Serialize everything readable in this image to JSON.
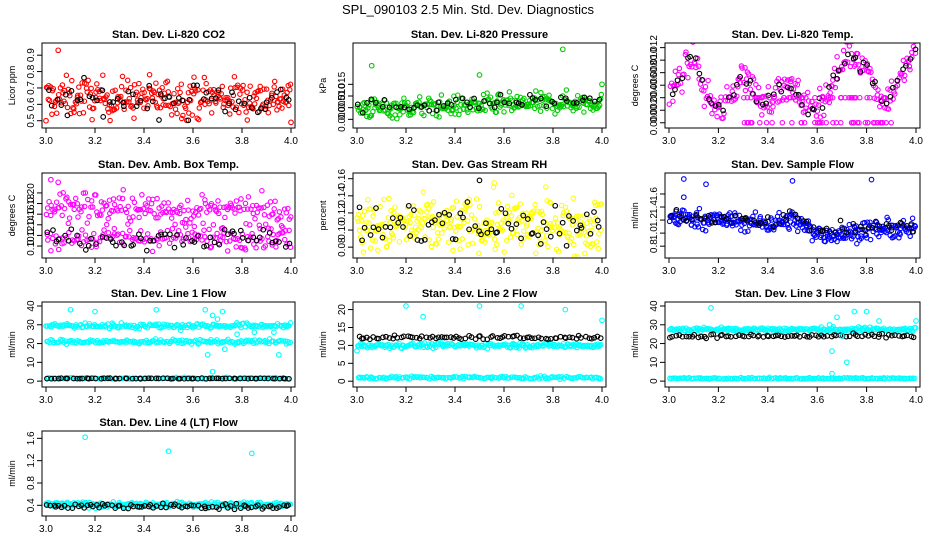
{
  "figure": {
    "title": "SPL_090103  2.5 Min. Std. Dev. Diagnostics",
    "colors": {
      "red": "#ff0000",
      "green": "#00cc00",
      "magenta": "#ff00ff",
      "yellow": "#ffff00",
      "blue": "#0000ff",
      "cyan": "#00ffff",
      "black": "#000000"
    }
  },
  "chart_data": [
    {
      "type": "scatter",
      "title": "Stan. Dev. Li-820 CO2",
      "ylabel": "Licor ppm",
      "xlim": [
        3.0,
        4.0
      ],
      "ylim": [
        0.48,
        0.95
      ],
      "xticks": [
        3.0,
        3.2,
        3.4,
        3.6,
        3.8,
        4.0
      ],
      "xtick_labels": [
        "3.0",
        "3.2",
        "3.4",
        "3.6",
        "3.8",
        "4.0"
      ],
      "yticks": [
        0.5,
        0.6,
        0.7,
        0.8,
        0.9
      ],
      "ytick_labels": [
        "0.5",
        "0.6",
        "0.7",
        "0.8",
        "0.9"
      ],
      "series": [
        {
          "name": "dense",
          "color": "red",
          "size": 280,
          "mean": 0.64,
          "spread": 0.06,
          "segments": []
        },
        {
          "name": "sparse",
          "color": "black",
          "size": 60,
          "mean": 0.63,
          "spread": 0.05,
          "segments": []
        }
      ],
      "outliers": [
        [
          3.05,
          0.93,
          "red"
        ],
        [
          3.0,
          0.5,
          "red"
        ],
        [
          4.0,
          0.49,
          "red"
        ]
      ]
    },
    {
      "type": "scatter",
      "title": "Stan. Dev. Li-820 Pressure",
      "ylabel": "kPa",
      "xlim": [
        3.0,
        4.0
      ],
      "ylim": [
        -0.002,
        0.031
      ],
      "xticks": [
        3.0,
        3.2,
        3.4,
        3.6,
        3.8,
        4.0
      ],
      "xtick_labels": [
        "3.0",
        "3.2",
        "3.4",
        "3.6",
        "3.8",
        "4.0"
      ],
      "yticks": [
        0.0,
        0.005,
        0.01,
        0.015
      ],
      "ytick_labels": [
        "0.000",
        "0.005",
        "0.010",
        "0.015"
      ],
      "series": [
        {
          "name": "dense",
          "color": "green",
          "size": 280,
          "mean": 0.0045,
          "spread": 0.0022,
          "trend": 0.003,
          "segments": []
        },
        {
          "name": "sparse",
          "color": "black",
          "size": 55,
          "mean": 0.0055,
          "spread": 0.0015,
          "trend": 0.003,
          "segments": []
        }
      ],
      "outliers": [
        [
          3.06,
          0.023,
          "green"
        ],
        [
          3.5,
          0.019,
          "green"
        ],
        [
          3.84,
          0.03,
          "green"
        ],
        [
          4.0,
          0.015,
          "green"
        ]
      ]
    },
    {
      "type": "scatter",
      "title": "Stan. Dev. Li-820 Temp.",
      "ylabel": "degrees C",
      "xlim": [
        3.0,
        4.0
      ],
      "ylim": [
        -0.0002,
        0.0121
      ],
      "xticks": [
        3.0,
        3.2,
        3.4,
        3.6,
        3.8,
        4.0
      ],
      "xtick_labels": [
        "3.0",
        "3.2",
        "3.4",
        "3.6",
        "3.8",
        "4.0"
      ],
      "yticks": [
        0.0,
        0.002,
        0.004,
        0.006,
        0.008,
        0.01,
        0.012
      ],
      "ytick_labels": [
        "0.000",
        "0.002",
        "0.004",
        "0.006",
        "0.008",
        "0.010",
        "0.012"
      ],
      "series": [
        {
          "name": "dense",
          "color": "magenta",
          "size": 240,
          "curve": [
            [
              3.0,
              0.004
            ],
            [
              3.1,
              0.011
            ],
            [
              3.15,
              0.004
            ],
            [
              3.22,
              0.002
            ],
            [
              3.3,
              0.008
            ],
            [
              3.38,
              0.003
            ],
            [
              3.48,
              0.006
            ],
            [
              3.58,
              0.002
            ],
            [
              3.65,
              0.005
            ],
            [
              3.72,
              0.0115
            ],
            [
              3.8,
              0.009
            ],
            [
              3.87,
              0.003
            ],
            [
              3.95,
              0.008
            ],
            [
              4.0,
              0.0115
            ]
          ],
          "spread": 0.0012,
          "segments": []
        },
        {
          "name": "sparse",
          "color": "black",
          "size": 60,
          "curve": [
            [
              3.0,
              0.004
            ],
            [
              3.1,
              0.011
            ],
            [
              3.15,
              0.004
            ],
            [
              3.22,
              0.002
            ],
            [
              3.3,
              0.008
            ],
            [
              3.38,
              0.003
            ],
            [
              3.48,
              0.006
            ],
            [
              3.58,
              0.002
            ],
            [
              3.65,
              0.005
            ],
            [
              3.72,
              0.0115
            ],
            [
              3.8,
              0.009
            ],
            [
              3.87,
              0.003
            ],
            [
              3.95,
              0.008
            ],
            [
              4.0,
              0.0115
            ]
          ],
          "spread": 0.0008,
          "segments": []
        }
      ],
      "levels": [
        {
          "y": 0.0,
          "color": "magenta"
        },
        {
          "y": 0.004,
          "color": "magenta"
        }
      ],
      "outliers": []
    },
    {
      "type": "scatter",
      "title": "Stan. Dev. Amb. Box Temp.",
      "ylabel": "degrees C",
      "xlim": [
        3.0,
        4.0
      ],
      "ylim": [
        0.085,
        0.23
      ],
      "xticks": [
        3.0,
        3.2,
        3.4,
        3.6,
        3.8,
        4.0
      ],
      "xtick_labels": [
        "3.0",
        "3.2",
        "3.4",
        "3.6",
        "3.8",
        "4.0"
      ],
      "yticks": [
        0.1,
        0.12,
        0.14,
        0.16,
        0.18,
        0.2
      ],
      "ytick_labels": [
        "0.10",
        "0.12",
        "0.14",
        "0.16",
        "0.18",
        "0.20"
      ],
      "series": [
        {
          "name": "upper",
          "color": "magenta",
          "size": 200,
          "mean": 0.178,
          "spread": 0.015,
          "trend": -0.02,
          "segments": []
        },
        {
          "name": "lower",
          "color": "magenta",
          "size": 150,
          "mean": 0.115,
          "spread": 0.01,
          "segments": []
        },
        {
          "name": "sparse",
          "color": "black",
          "size": 60,
          "mean": 0.115,
          "spread": 0.01,
          "segments": []
        }
      ],
      "outliers": [
        [
          3.02,
          0.225,
          "magenta"
        ],
        [
          3.05,
          0.22,
          "magenta"
        ]
      ]
    },
    {
      "type": "scatter",
      "title": "Stan. Dev. Gas Stream RH",
      "ylabel": "percent",
      "xlim": [
        3.0,
        4.0
      ],
      "ylim": [
        0.072,
        0.162
      ],
      "xticks": [
        3.0,
        3.2,
        3.4,
        3.6,
        3.8,
        4.0
      ],
      "xtick_labels": [
        "3.0",
        "3.2",
        "3.4",
        "3.6",
        "3.8",
        "4.0"
      ],
      "yticks": [
        0.08,
        0.1,
        0.12,
        0.14,
        0.16
      ],
      "ytick_labels": [
        "0.08",
        "0.10",
        "0.12",
        "0.14",
        "0.16"
      ],
      "series": [
        {
          "name": "dense",
          "color": "yellow",
          "size": 320,
          "mean": 0.105,
          "spread": 0.016,
          "segments": []
        },
        {
          "name": "sparse",
          "color": "black",
          "size": 70,
          "mean": 0.105,
          "spread": 0.014,
          "segments": []
        }
      ],
      "outliers": [
        [
          3.5,
          0.158,
          "black"
        ],
        [
          3.56,
          0.155,
          "yellow"
        ]
      ]
    },
    {
      "type": "scatter",
      "title": "Stan. Dev. Sample Flow",
      "ylabel": "ml/min",
      "xlim": [
        3.0,
        4.0
      ],
      "ylim": [
        0.68,
        1.86
      ],
      "xticks": [
        3.0,
        3.2,
        3.4,
        3.6,
        3.8,
        4.0
      ],
      "xtick_labels": [
        "3.0",
        "3.2",
        "3.4",
        "3.6",
        "3.8",
        "4.0"
      ],
      "yticks": [
        0.8,
        1.0,
        1.2,
        1.4,
        1.6
      ],
      "ytick_labels": [
        "0.8",
        "1.0",
        "1.2",
        "1.4",
        "1.6"
      ],
      "series": [
        {
          "name": "dense",
          "color": "blue",
          "size": 320,
          "curve": [
            [
              3.0,
              1.25
            ],
            [
              3.4,
              1.15
            ],
            [
              3.5,
              1.2
            ],
            [
              3.6,
              1.0
            ],
            [
              3.7,
              0.98
            ],
            [
              3.8,
              1.05
            ],
            [
              4.0,
              1.05
            ]
          ],
          "spread": 0.07,
          "segments": []
        },
        {
          "name": "sparse",
          "color": "black",
          "size": 60,
          "curve": [
            [
              3.0,
              1.28
            ],
            [
              3.4,
              1.2
            ],
            [
              3.5,
              1.25
            ],
            [
              3.6,
              1.05
            ],
            [
              3.7,
              1.05
            ],
            [
              3.8,
              1.1
            ],
            [
              4.0,
              1.1
            ]
          ],
          "spread": 0.05,
          "segments": []
        }
      ],
      "outliers": [
        [
          3.06,
          1.83,
          "blue"
        ],
        [
          3.15,
          1.75,
          "blue"
        ],
        [
          3.5,
          1.8,
          "blue"
        ],
        [
          3.82,
          1.82,
          "blue"
        ],
        [
          3.06,
          1.55,
          "blue"
        ]
      ]
    },
    {
      "type": "scatter",
      "title": "Stan. Dev. Line 1 Flow",
      "ylabel": "ml/min",
      "xlim": [
        3.0,
        4.0
      ],
      "ylim": [
        -1,
        40
      ],
      "xticks": [
        3.0,
        3.2,
        3.4,
        3.6,
        3.8,
        4.0
      ],
      "xtick_labels": [
        "3.0",
        "3.2",
        "3.4",
        "3.6",
        "3.8",
        "4.0"
      ],
      "yticks": [
        0,
        10,
        20,
        30,
        40
      ],
      "ytick_labels": [
        "0",
        "10",
        "20",
        "30",
        "40"
      ],
      "series": [
        {
          "name": "upper",
          "color": "cyan",
          "size": 180,
          "mean": 29.5,
          "spread": 0.7,
          "segments": []
        },
        {
          "name": "middle",
          "color": "cyan",
          "size": 180,
          "mean": 21,
          "spread": 0.6,
          "segments": []
        },
        {
          "name": "zero",
          "color": "cyan",
          "size": 120,
          "mean": 1.5,
          "spread": 0.2,
          "segments": []
        },
        {
          "name": "black",
          "color": "black",
          "size": 70,
          "mean": 1.4,
          "spread": 0.1,
          "segments": []
        }
      ],
      "outliers": [
        [
          3.65,
          38,
          "cyan"
        ],
        [
          3.68,
          35,
          "cyan"
        ],
        [
          3.7,
          33,
          "cyan"
        ],
        [
          3.72,
          37,
          "cyan"
        ],
        [
          3.66,
          14,
          "cyan"
        ],
        [
          3.68,
          5,
          "cyan"
        ],
        [
          3.73,
          17,
          "cyan"
        ],
        [
          3.78,
          25,
          "cyan"
        ],
        [
          3.85,
          26,
          "cyan"
        ],
        [
          3.93,
          26,
          "cyan"
        ],
        [
          3.95,
          14,
          "cyan"
        ],
        [
          3.98,
          29,
          "cyan"
        ],
        [
          3.1,
          38,
          "cyan"
        ],
        [
          3.2,
          37,
          "cyan"
        ],
        [
          3.45,
          38,
          "cyan"
        ],
        [
          3.55,
          27,
          "cyan"
        ]
      ]
    },
    {
      "type": "scatter",
      "title": "Stan. Dev. Line 2 Flow",
      "ylabel": "ml/min",
      "xlim": [
        3.0,
        4.0
      ],
      "ylim": [
        -0.5,
        21
      ],
      "xticks": [
        3.0,
        3.2,
        3.4,
        3.6,
        3.8,
        4.0
      ],
      "xtick_labels": [
        "3.0",
        "3.2",
        "3.4",
        "3.6",
        "3.8",
        "4.0"
      ],
      "yticks": [
        0,
        5,
        10,
        15,
        20
      ],
      "ytick_labels": [
        "0",
        "5",
        "10",
        "15",
        "20"
      ],
      "series": [
        {
          "name": "upper",
          "color": "cyan",
          "size": 200,
          "mean": 10,
          "spread": 0.35,
          "segments": []
        },
        {
          "name": "zero",
          "color": "cyan",
          "size": 150,
          "mean": 1.0,
          "spread": 0.2,
          "segments": []
        },
        {
          "name": "black",
          "color": "black",
          "size": 80,
          "mean": 12.2,
          "spread": 0.25,
          "segments": []
        }
      ],
      "outliers": [
        [
          3.0,
          8.5,
          "cyan"
        ],
        [
          3.2,
          21,
          "cyan"
        ],
        [
          3.27,
          18,
          "cyan"
        ],
        [
          3.5,
          21,
          "cyan"
        ],
        [
          3.67,
          21,
          "cyan"
        ],
        [
          3.85,
          20,
          "cyan"
        ],
        [
          4.0,
          17,
          "cyan"
        ]
      ]
    },
    {
      "type": "scatter",
      "title": "Stan. Dev. Line 3 Flow",
      "ylabel": "ml/min",
      "xlim": [
        3.0,
        4.0
      ],
      "ylim": [
        -1,
        40
      ],
      "xticks": [
        3.0,
        3.2,
        3.4,
        3.6,
        3.8,
        4.0
      ],
      "xtick_labels": [
        "3.0",
        "3.2",
        "3.4",
        "3.6",
        "3.8",
        "4.0"
      ],
      "yticks": [
        0,
        10,
        20,
        30,
        40
      ],
      "ytick_labels": [
        "0",
        "10",
        "20",
        "30",
        "40"
      ],
      "series": [
        {
          "name": "upper",
          "color": "cyan",
          "size": 220,
          "mean": 27.5,
          "spread": 0.6,
          "segments": []
        },
        {
          "name": "zero",
          "color": "cyan",
          "size": 150,
          "mean": 1.5,
          "spread": 0.2,
          "segments": []
        },
        {
          "name": "black",
          "color": "black",
          "size": 80,
          "mean": 24,
          "spread": 0.5,
          "segments": []
        }
      ],
      "outliers": [
        [
          3.17,
          39,
          "cyan"
        ],
        [
          3.65,
          30,
          "cyan"
        ],
        [
          3.66,
          16,
          "cyan"
        ],
        [
          3.68,
          34,
          "cyan"
        ],
        [
          3.7,
          24,
          "cyan"
        ],
        [
          3.72,
          10,
          "cyan"
        ],
        [
          3.75,
          37,
          "cyan"
        ],
        [
          3.8,
          37,
          "cyan"
        ],
        [
          3.85,
          32,
          "cyan"
        ],
        [
          3.66,
          4,
          "cyan"
        ],
        [
          4.0,
          32,
          "cyan"
        ]
      ]
    },
    {
      "type": "scatter",
      "title": "Stan. Dev. Line 4 (LT) Flow",
      "ylabel": "ml/min",
      "xlim": [
        3.0,
        4.0
      ],
      "ylim": [
        0.28,
        1.66
      ],
      "xticks": [
        3.0,
        3.2,
        3.4,
        3.6,
        3.8,
        4.0
      ],
      "xtick_labels": [
        "3.0",
        "3.2",
        "3.4",
        "3.6",
        "3.8",
        "4.0"
      ],
      "yticks": [
        0.4,
        0.8,
        1.2,
        1.6
      ],
      "ytick_labels": [
        "0.4",
        "0.8",
        "1.2",
        "1.6"
      ],
      "series": [
        {
          "name": "dense",
          "color": "cyan",
          "size": 260,
          "mean": 0.41,
          "spread": 0.025,
          "segments": []
        },
        {
          "name": "black",
          "color": "black",
          "size": 80,
          "mean": 0.38,
          "spread": 0.025,
          "segments": []
        }
      ],
      "outliers": [
        [
          3.16,
          1.62,
          "cyan"
        ],
        [
          3.5,
          1.37,
          "cyan"
        ],
        [
          3.84,
          1.33,
          "cyan"
        ]
      ]
    }
  ]
}
